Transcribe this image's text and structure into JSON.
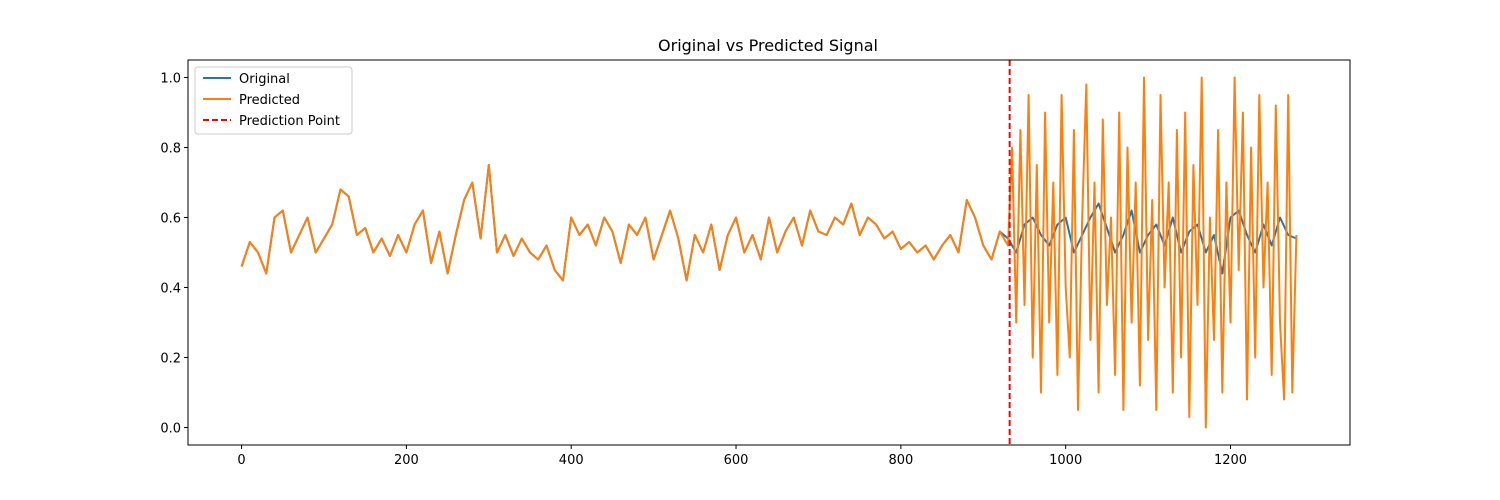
{
  "chart_data": {
    "type": "line",
    "title": "Original vs Predicted Signal",
    "xlabel": "",
    "ylabel": "",
    "xlim": [
      -65,
      1345
    ],
    "ylim": [
      -0.05,
      1.05
    ],
    "x_ticks": [
      0,
      200,
      400,
      600,
      800,
      1000,
      1200
    ],
    "x_tick_labels": [
      "0",
      "200",
      "400",
      "600",
      "800",
      "1000",
      "1200"
    ],
    "y_ticks": [
      0.0,
      0.2,
      0.4,
      0.6,
      0.8,
      1.0
    ],
    "y_tick_labels": [
      "0.0",
      "0.2",
      "0.4",
      "0.6",
      "0.8",
      "1.0"
    ],
    "grid": false,
    "legend_position": "top-left",
    "prediction_point": 932,
    "series": [
      {
        "name": "Original",
        "color": "#1f77b4",
        "style": "solid",
        "x": [
          0,
          10,
          20,
          30,
          40,
          50,
          60,
          70,
          80,
          90,
          100,
          110,
          120,
          130,
          140,
          150,
          160,
          170,
          180,
          190,
          200,
          210,
          220,
          230,
          240,
          250,
          260,
          270,
          280,
          290,
          300,
          310,
          320,
          330,
          340,
          350,
          360,
          370,
          380,
          390,
          400,
          410,
          420,
          430,
          440,
          450,
          460,
          470,
          480,
          490,
          500,
          510,
          520,
          530,
          540,
          550,
          560,
          570,
          580,
          590,
          600,
          610,
          620,
          630,
          640,
          650,
          660,
          670,
          680,
          690,
          700,
          710,
          720,
          730,
          740,
          750,
          760,
          770,
          780,
          790,
          800,
          810,
          820,
          830,
          840,
          850,
          860,
          870,
          880,
          890,
          900,
          910,
          920,
          930,
          940,
          950,
          960,
          970,
          980,
          990,
          1000,
          1010,
          1020,
          1030,
          1040,
          1050,
          1060,
          1070,
          1080,
          1090,
          1100,
          1110,
          1120,
          1130,
          1140,
          1150,
          1160,
          1170,
          1180,
          1190,
          1200,
          1210,
          1220,
          1230,
          1240,
          1250,
          1260,
          1270,
          1280
        ],
        "y": [
          0.46,
          0.53,
          0.5,
          0.44,
          0.6,
          0.62,
          0.5,
          0.55,
          0.6,
          0.5,
          0.54,
          0.58,
          0.68,
          0.66,
          0.55,
          0.57,
          0.5,
          0.54,
          0.49,
          0.55,
          0.5,
          0.58,
          0.62,
          0.47,
          0.56,
          0.44,
          0.55,
          0.65,
          0.7,
          0.54,
          0.75,
          0.5,
          0.55,
          0.49,
          0.54,
          0.5,
          0.48,
          0.52,
          0.45,
          0.42,
          0.6,
          0.55,
          0.58,
          0.52,
          0.6,
          0.56,
          0.47,
          0.58,
          0.55,
          0.6,
          0.48,
          0.55,
          0.62,
          0.54,
          0.42,
          0.55,
          0.5,
          0.58,
          0.45,
          0.55,
          0.6,
          0.5,
          0.55,
          0.48,
          0.6,
          0.5,
          0.56,
          0.6,
          0.52,
          0.62,
          0.56,
          0.55,
          0.6,
          0.58,
          0.64,
          0.55,
          0.6,
          0.58,
          0.54,
          0.56,
          0.51,
          0.53,
          0.5,
          0.52,
          0.48,
          0.52,
          0.55,
          0.5,
          0.65,
          0.6,
          0.52,
          0.48,
          0.56,
          0.54,
          0.5,
          0.58,
          0.6,
          0.55,
          0.52,
          0.58,
          0.6,
          0.5,
          0.55,
          0.6,
          0.64,
          0.57,
          0.5,
          0.55,
          0.62,
          0.5,
          0.55,
          0.58,
          0.52,
          0.6,
          0.5,
          0.56,
          0.58,
          0.5,
          0.55,
          0.44,
          0.6,
          0.62,
          0.55,
          0.5,
          0.58,
          0.52,
          0.6,
          0.55,
          0.54
        ]
      },
      {
        "name": "Predicted",
        "color": "#ff7f0e",
        "style": "solid",
        "x": [
          0,
          10,
          20,
          30,
          40,
          50,
          60,
          70,
          80,
          90,
          100,
          110,
          120,
          130,
          140,
          150,
          160,
          170,
          180,
          190,
          200,
          210,
          220,
          230,
          240,
          250,
          260,
          270,
          280,
          290,
          300,
          310,
          320,
          330,
          340,
          350,
          360,
          370,
          380,
          390,
          400,
          410,
          420,
          430,
          440,
          450,
          460,
          470,
          480,
          490,
          500,
          510,
          520,
          530,
          540,
          550,
          560,
          570,
          580,
          590,
          600,
          610,
          620,
          630,
          640,
          650,
          660,
          670,
          680,
          690,
          700,
          710,
          720,
          730,
          740,
          750,
          760,
          770,
          780,
          790,
          800,
          810,
          820,
          830,
          840,
          850,
          860,
          870,
          880,
          890,
          900,
          910,
          920,
          930,
          935,
          940,
          945,
          950,
          955,
          960,
          965,
          970,
          975,
          980,
          985,
          990,
          995,
          1000,
          1005,
          1010,
          1015,
          1020,
          1025,
          1030,
          1035,
          1040,
          1045,
          1050,
          1055,
          1060,
          1065,
          1070,
          1075,
          1080,
          1085,
          1090,
          1095,
          1100,
          1105,
          1110,
          1115,
          1120,
          1125,
          1130,
          1135,
          1140,
          1145,
          1150,
          1155,
          1160,
          1165,
          1170,
          1175,
          1180,
          1185,
          1190,
          1195,
          1200,
          1205,
          1210,
          1215,
          1220,
          1225,
          1230,
          1235,
          1240,
          1245,
          1250,
          1255,
          1260,
          1265,
          1270,
          1275,
          1280
        ],
        "y": [
          0.46,
          0.53,
          0.5,
          0.44,
          0.6,
          0.62,
          0.5,
          0.55,
          0.6,
          0.5,
          0.54,
          0.58,
          0.68,
          0.66,
          0.55,
          0.57,
          0.5,
          0.54,
          0.49,
          0.55,
          0.5,
          0.58,
          0.62,
          0.47,
          0.56,
          0.44,
          0.55,
          0.65,
          0.7,
          0.54,
          0.75,
          0.5,
          0.55,
          0.49,
          0.54,
          0.5,
          0.48,
          0.52,
          0.45,
          0.42,
          0.6,
          0.55,
          0.58,
          0.52,
          0.6,
          0.56,
          0.47,
          0.58,
          0.55,
          0.6,
          0.48,
          0.55,
          0.62,
          0.54,
          0.42,
          0.55,
          0.5,
          0.58,
          0.45,
          0.55,
          0.6,
          0.5,
          0.55,
          0.48,
          0.6,
          0.5,
          0.56,
          0.6,
          0.52,
          0.62,
          0.56,
          0.55,
          0.6,
          0.58,
          0.64,
          0.55,
          0.6,
          0.58,
          0.54,
          0.56,
          0.51,
          0.53,
          0.5,
          0.52,
          0.48,
          0.52,
          0.55,
          0.5,
          0.65,
          0.6,
          0.52,
          0.48,
          0.56,
          0.52,
          0.8,
          0.3,
          0.85,
          0.35,
          0.95,
          0.2,
          0.75,
          0.1,
          0.9,
          0.3,
          0.7,
          0.15,
          0.95,
          0.4,
          0.2,
          0.85,
          0.05,
          0.6,
          0.98,
          0.25,
          0.7,
          0.1,
          0.88,
          0.35,
          0.6,
          0.15,
          0.9,
          0.05,
          0.8,
          0.3,
          0.7,
          0.12,
          1.0,
          0.25,
          0.65,
          0.05,
          0.95,
          0.4,
          0.7,
          0.1,
          0.85,
          0.2,
          0.9,
          0.03,
          0.75,
          0.35,
          1.0,
          0.0,
          0.6,
          0.25,
          0.85,
          0.1,
          0.7,
          0.3,
          1.0,
          0.45,
          0.9,
          0.08,
          0.8,
          0.2,
          0.95,
          0.4,
          0.7,
          0.15,
          0.92,
          0.3,
          0.08,
          0.95,
          0.1,
          0.55
        ]
      }
    ],
    "legend": [
      {
        "label": "Original",
        "color": "#1f77b4",
        "style": "solid"
      },
      {
        "label": "Predicted",
        "color": "#ff7f0e",
        "style": "solid"
      },
      {
        "label": "Prediction Point",
        "color": "#ff0000",
        "style": "dashed"
      }
    ]
  }
}
